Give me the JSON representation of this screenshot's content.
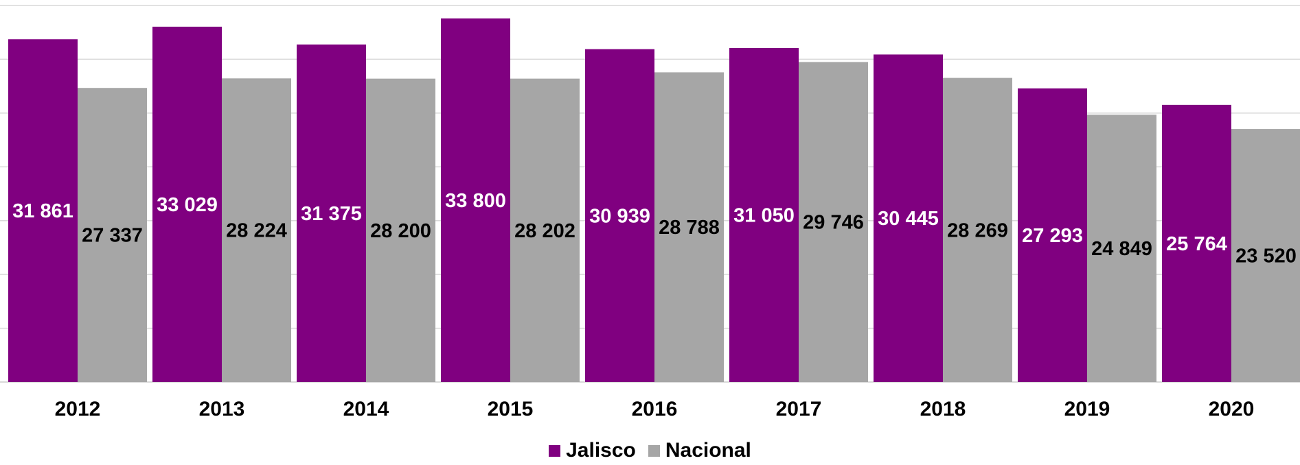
{
  "chart_data": {
    "type": "bar",
    "categories": [
      "2012",
      "2013",
      "2014",
      "2015",
      "2016",
      "2017",
      "2018",
      "2019",
      "2020"
    ],
    "series": [
      {
        "name": "Jalisco",
        "color": "#800080",
        "label_color": "#ffffff",
        "values": [
          31861,
          33029,
          31375,
          33800,
          30939,
          31050,
          30445,
          27293,
          25764
        ],
        "labels": [
          "31 861",
          "33 029",
          "31 375",
          "33 800",
          "30 939",
          "31 050",
          "30 445",
          "27 293",
          "25 764"
        ]
      },
      {
        "name": "Nacional",
        "color": "#a6a6a6",
        "label_color": "#000000",
        "values": [
          27337,
          28224,
          28200,
          28202,
          28788,
          29746,
          28269,
          24849,
          23520
        ],
        "labels": [
          "27 337",
          "28 224",
          "28 200",
          "28 202",
          "28 788",
          "29 746",
          "28 269",
          "24 849",
          "23 520"
        ]
      }
    ],
    "title": "",
    "xlabel": "",
    "ylabel": "",
    "ylim": [
      0,
      35000
    ],
    "grid": true,
    "legend": "bottom-center"
  }
}
